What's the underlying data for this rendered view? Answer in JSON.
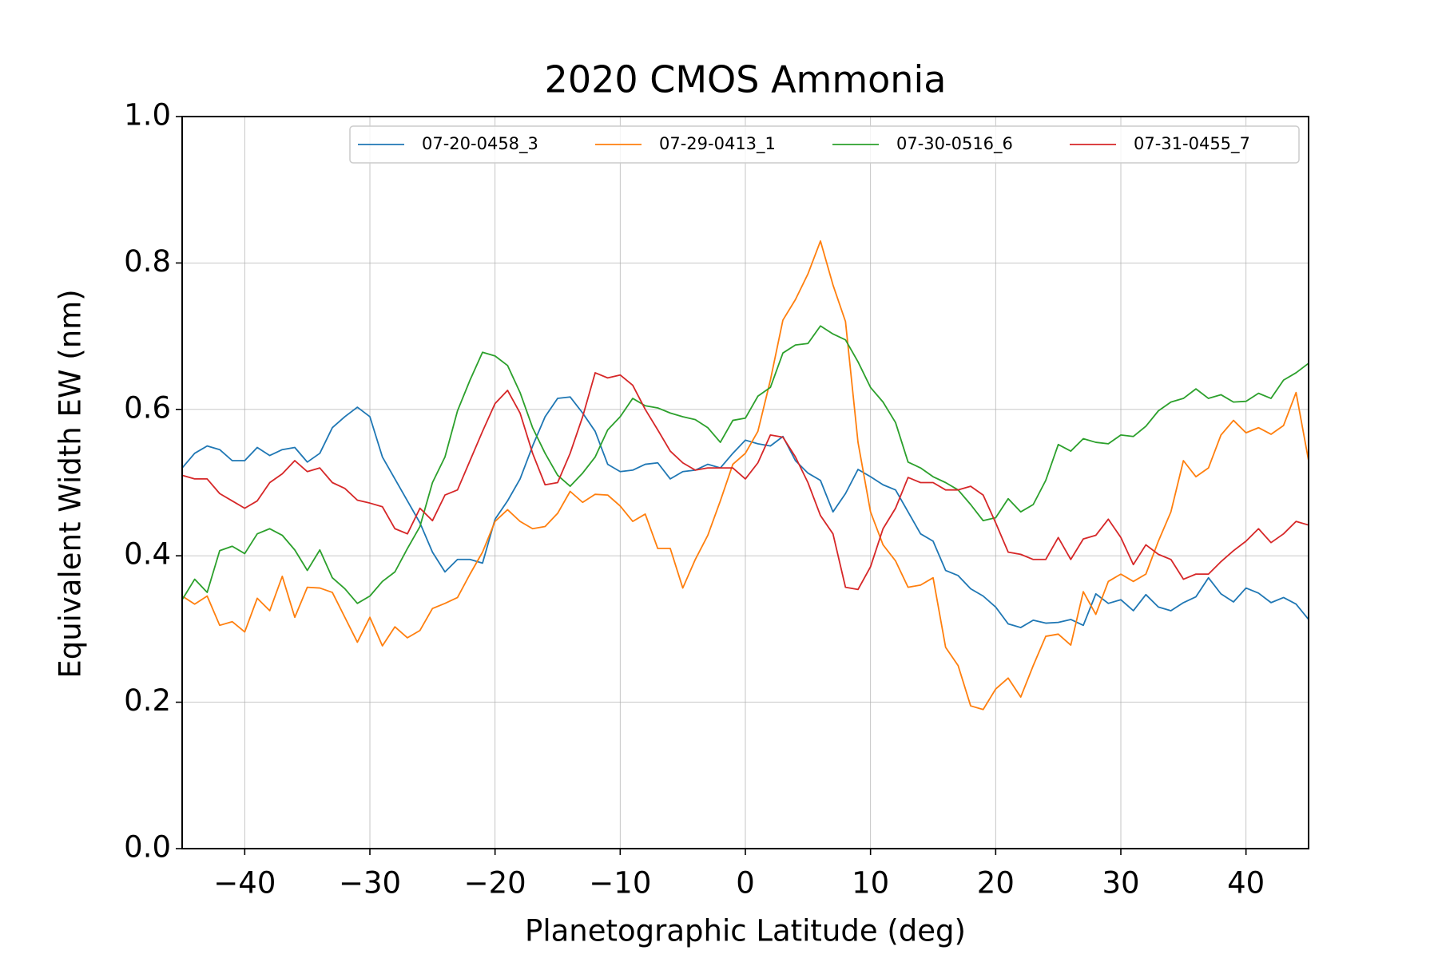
{
  "chart_data": {
    "type": "line",
    "title": "2020 CMOS Ammonia",
    "x_label": "Planetographic Latitude (deg)",
    "y_label": "Equivalent Width EW (nm)",
    "x": [
      -45,
      -44,
      -43,
      -42,
      -41,
      -40,
      -39,
      -38,
      -37,
      -36,
      -35,
      -34,
      -33,
      -32,
      -31,
      -30,
      -29,
      -28,
      -27,
      -26,
      -25,
      -24,
      -23,
      -22,
      -21,
      -20,
      -19,
      -18,
      -17,
      -16,
      -15,
      -14,
      -13,
      -12,
      -11,
      -10,
      -9,
      -8,
      -7,
      -6,
      -5,
      -4,
      -3,
      -2,
      -1,
      0,
      1,
      2,
      3,
      4,
      5,
      6,
      7,
      8,
      9,
      10,
      11,
      12,
      13,
      14,
      15,
      16,
      17,
      18,
      19,
      20,
      21,
      22,
      23,
      24,
      25,
      26,
      27,
      28,
      29,
      30,
      31,
      32,
      33,
      34,
      35,
      36,
      37,
      38,
      39,
      40,
      41,
      42,
      43,
      44,
      45
    ],
    "series": [
      {
        "name": "07-20-0458_3",
        "color": "#1f77b4",
        "values": [
          0.52,
          0.54,
          0.55,
          0.545,
          0.53,
          0.53,
          0.548,
          0.537,
          0.545,
          0.548,
          0.528,
          0.54,
          0.575,
          0.59,
          0.603,
          0.59,
          0.535,
          0.505,
          0.475,
          0.445,
          0.405,
          0.378,
          0.395,
          0.395,
          0.39,
          0.45,
          0.475,
          0.505,
          0.55,
          0.59,
          0.615,
          0.617,
          0.595,
          0.57,
          0.525,
          0.515,
          0.517,
          0.525,
          0.527,
          0.505,
          0.515,
          0.517,
          0.525,
          0.52,
          0.54,
          0.558,
          0.553,
          0.55,
          0.563,
          0.53,
          0.513,
          0.503,
          0.46,
          0.485,
          0.518,
          0.508,
          0.497,
          0.49,
          0.46,
          0.43,
          0.42,
          0.38,
          0.373,
          0.355,
          0.345,
          0.33,
          0.307,
          0.302,
          0.312,
          0.308,
          0.309,
          0.313,
          0.305,
          0.348,
          0.335,
          0.34,
          0.325,
          0.347,
          0.33,
          0.325,
          0.336,
          0.344,
          0.37,
          0.348,
          0.337,
          0.356,
          0.349,
          0.336,
          0.343,
          0.334,
          0.313
        ]
      },
      {
        "name": "07-29-0413_1",
        "color": "#ff7f0e",
        "values": [
          0.345,
          0.334,
          0.345,
          0.305,
          0.31,
          0.296,
          0.342,
          0.325,
          0.372,
          0.316,
          0.357,
          0.356,
          0.35,
          0.316,
          0.282,
          0.316,
          0.277,
          0.303,
          0.288,
          0.298,
          0.328,
          0.335,
          0.343,
          0.375,
          0.405,
          0.447,
          0.463,
          0.447,
          0.437,
          0.44,
          0.458,
          0.488,
          0.473,
          0.484,
          0.483,
          0.468,
          0.447,
          0.457,
          0.41,
          0.41,
          0.356,
          0.395,
          0.428,
          0.475,
          0.525,
          0.54,
          0.57,
          0.64,
          0.722,
          0.75,
          0.785,
          0.83,
          0.77,
          0.72,
          0.555,
          0.46,
          0.415,
          0.393,
          0.357,
          0.36,
          0.37,
          0.275,
          0.25,
          0.195,
          0.19,
          0.218,
          0.233,
          0.207,
          0.25,
          0.29,
          0.293,
          0.278,
          0.351,
          0.32,
          0.365,
          0.375,
          0.365,
          0.375,
          0.42,
          0.46,
          0.53,
          0.508,
          0.52,
          0.565,
          0.585,
          0.568,
          0.575,
          0.566,
          0.578,
          0.623,
          0.53
        ]
      },
      {
        "name": "07-30-0516_6",
        "color": "#2ca02c",
        "values": [
          0.34,
          0.368,
          0.35,
          0.407,
          0.413,
          0.403,
          0.43,
          0.437,
          0.428,
          0.408,
          0.38,
          0.408,
          0.37,
          0.355,
          0.335,
          0.345,
          0.365,
          0.378,
          0.41,
          0.44,
          0.5,
          0.535,
          0.598,
          0.64,
          0.678,
          0.673,
          0.66,
          0.623,
          0.575,
          0.54,
          0.51,
          0.495,
          0.513,
          0.535,
          0.572,
          0.59,
          0.615,
          0.605,
          0.602,
          0.595,
          0.59,
          0.586,
          0.575,
          0.555,
          0.585,
          0.588,
          0.618,
          0.63,
          0.677,
          0.688,
          0.69,
          0.714,
          0.703,
          0.695,
          0.665,
          0.63,
          0.61,
          0.582,
          0.528,
          0.52,
          0.508,
          0.5,
          0.49,
          0.47,
          0.448,
          0.452,
          0.478,
          0.46,
          0.47,
          0.503,
          0.552,
          0.543,
          0.56,
          0.555,
          0.553,
          0.565,
          0.563,
          0.577,
          0.598,
          0.61,
          0.615,
          0.628,
          0.615,
          0.62,
          0.61,
          0.611,
          0.622,
          0.615,
          0.64,
          0.65,
          0.663
        ]
      },
      {
        "name": "07-31-0455_7",
        "color": "#d62728",
        "values": [
          0.51,
          0.505,
          0.505,
          0.485,
          0.475,
          0.465,
          0.475,
          0.5,
          0.512,
          0.53,
          0.515,
          0.52,
          0.5,
          0.492,
          0.476,
          0.472,
          0.467,
          0.437,
          0.43,
          0.465,
          0.448,
          0.483,
          0.49,
          0.53,
          0.57,
          0.608,
          0.626,
          0.595,
          0.54,
          0.497,
          0.5,
          0.54,
          0.59,
          0.65,
          0.643,
          0.647,
          0.633,
          0.6,
          0.572,
          0.543,
          0.527,
          0.517,
          0.52,
          0.52,
          0.52,
          0.505,
          0.527,
          0.565,
          0.562,
          0.535,
          0.5,
          0.455,
          0.43,
          0.357,
          0.354,
          0.385,
          0.437,
          0.465,
          0.507,
          0.5,
          0.5,
          0.49,
          0.49,
          0.495,
          0.483,
          0.445,
          0.405,
          0.402,
          0.395,
          0.395,
          0.425,
          0.395,
          0.423,
          0.428,
          0.45,
          0.425,
          0.388,
          0.415,
          0.402,
          0.395,
          0.368,
          0.375,
          0.375,
          0.392,
          0.407,
          0.42,
          0.437,
          0.418,
          0.43,
          0.447,
          0.442
        ]
      }
    ],
    "xlim": [
      -45,
      45
    ],
    "xticks": [
      {
        "value": -40,
        "label": "−40"
      },
      {
        "value": -30,
        "label": "−30"
      },
      {
        "value": -20,
        "label": "−20"
      },
      {
        "value": -10,
        "label": "−10"
      },
      0,
      10,
      20,
      30,
      40
    ],
    "ylim": [
      0,
      1
    ],
    "yticks": [
      {
        "value": 0,
        "label": "0.0"
      },
      0.2,
      0.4,
      0.6,
      0.8,
      {
        "value": 1,
        "label": "1.0"
      }
    ],
    "grid": true,
    "legend": "upper right"
  }
}
